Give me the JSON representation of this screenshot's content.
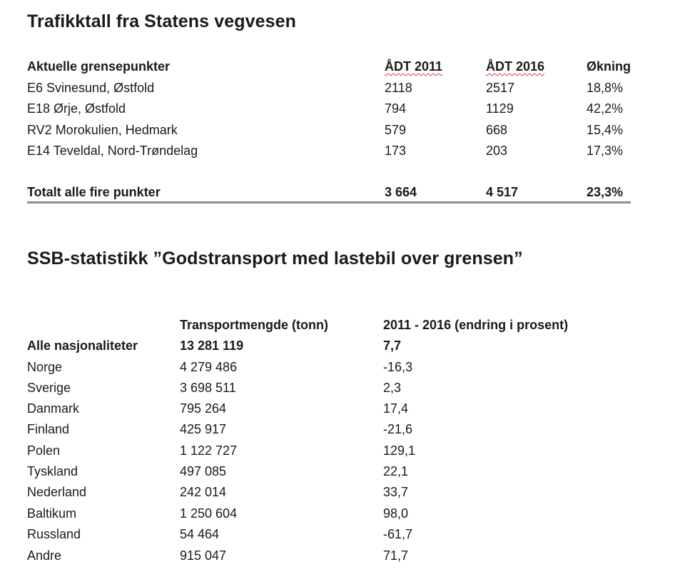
{
  "section1": {
    "title": "Trafikktall fra Statens vegvesen",
    "headers": [
      "Aktuelle grensepunkter",
      "ÅDT 2011",
      "ÅDT 2016",
      "Økning"
    ],
    "rows": [
      [
        "E6 Svinesund, Østfold",
        "2118",
        "2517",
        "18,8%"
      ],
      [
        "E18 Ørje, Østfold",
        "794",
        "1129",
        "42,2%"
      ],
      [
        "RV2 Morokulien, Hedmark",
        "579",
        "668",
        "15,4%"
      ],
      [
        "E14 Teveldal, Nord-Trøndelag",
        "173",
        "203",
        "17,3%"
      ]
    ],
    "total": [
      "Totalt alle fire punkter",
      "3 664",
      "4 517",
      "23,3%"
    ]
  },
  "section2": {
    "title": "SSB-statistikk ”Godstransport med lastebil over grensen”",
    "headers": [
      "Transportmengde (tonn)",
      "2011 - 2016 (endring i prosent)"
    ],
    "rows": [
      [
        "Alle nasjonaliteter",
        "13 281 119",
        "7,7"
      ],
      [
        "Norge",
        "4 279 486",
        "-16,3"
      ],
      [
        "Sverige",
        "3 698 511",
        "2,3"
      ],
      [
        "Danmark",
        "795 264",
        "17,4"
      ],
      [
        "Finland",
        "425 917",
        "-21,6"
      ],
      [
        "Polen",
        "1 122 727",
        "129,1"
      ],
      [
        "Tyskland",
        "497 085",
        "22,1"
      ],
      [
        "Nederland",
        "242 014",
        "33,7"
      ],
      [
        "Baltikum",
        "1 250 604",
        "98,0"
      ],
      [
        "Russland",
        "54 464",
        "-61,7"
      ],
      [
        "Andre",
        "915 047",
        "71,7"
      ]
    ]
  }
}
